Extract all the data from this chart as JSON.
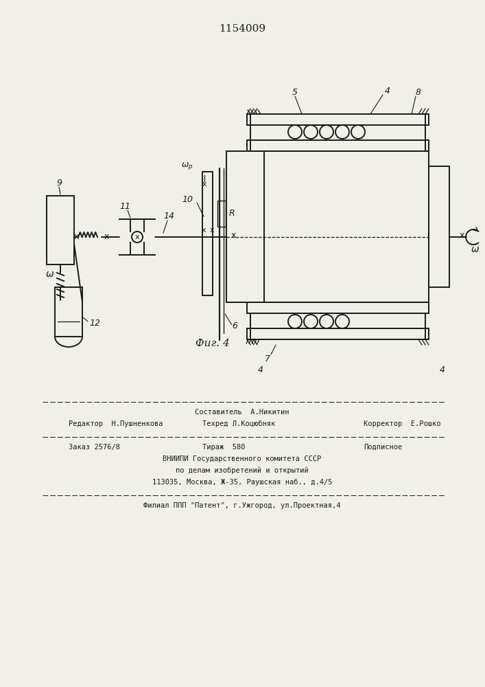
{
  "title": "1154009",
  "fig_label": "Фиг. 4",
  "bg_color": "#f0efe8",
  "line_color": "#1a1a1a",
  "footer_line1_center": "Составитель  А.Никитин",
  "footer_line2_left": "Редактор  Н.Пушненкова",
  "footer_line2_center": "Техред Л.Коцюбняк",
  "footer_line2_right": "Корректор  Е.Рошко",
  "footer_line3_left": "Заказ 2576/8",
  "footer_line3_center": "Тираж  580",
  "footer_line3_right": "Подписное",
  "footer_line4": "ВНИИПИ Государственного комитета СССР",
  "footer_line5": "по делам изобретений и открытий",
  "footer_line6": "113035, Москва, Ж-35, Раушская наб., д.4/5",
  "footer_line7": "Филиал ППП \"Патент\", г.Ужгород, ул.Проектная,4"
}
